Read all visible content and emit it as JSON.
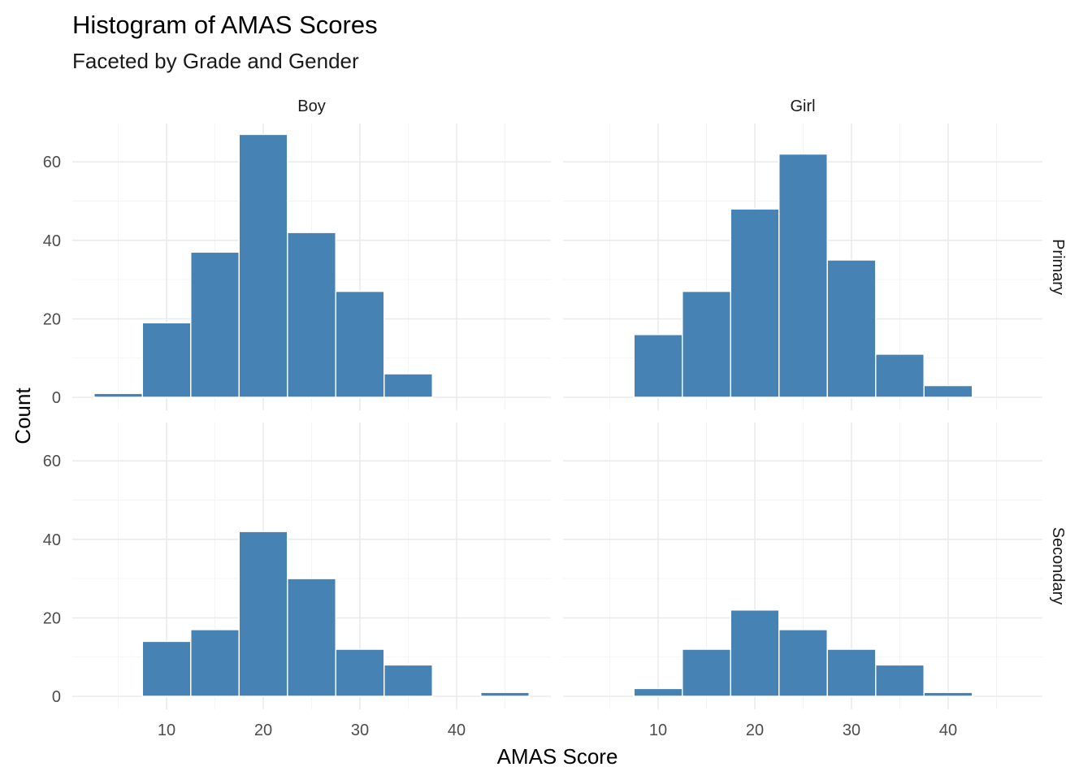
{
  "chart_data": {
    "type": "bar",
    "title": "Histogram of AMAS Scores",
    "subtitle": "Faceted by Grade and Gender",
    "xlabel": "AMAS Score",
    "ylabel": "Count",
    "xlim": [
      0.5,
      50
    ],
    "ylim": [
      0,
      70
    ],
    "x_ticks": [
      10,
      20,
      30,
      40
    ],
    "y_ticks": [
      0,
      20,
      40,
      60
    ],
    "grid": true,
    "bin_width": 5,
    "bar_color": "#4682B4",
    "columns": [
      "Boy",
      "Girl"
    ],
    "rows": [
      "Primary",
      "Secondary"
    ],
    "bins": [
      5,
      10,
      15,
      20,
      25,
      30,
      35,
      40,
      45
    ],
    "facets": [
      {
        "col": "Boy",
        "row": "Primary",
        "values": [
          1,
          19,
          37,
          67,
          42,
          27,
          6,
          0,
          0
        ]
      },
      {
        "col": "Girl",
        "row": "Primary",
        "values": [
          0,
          16,
          27,
          48,
          62,
          35,
          11,
          3,
          0
        ]
      },
      {
        "col": "Boy",
        "row": "Secondary",
        "values": [
          0,
          14,
          17,
          42,
          30,
          12,
          8,
          0,
          1
        ]
      },
      {
        "col": "Girl",
        "row": "Secondary",
        "values": [
          0,
          2,
          12,
          22,
          17,
          12,
          8,
          1,
          0
        ]
      }
    ]
  }
}
